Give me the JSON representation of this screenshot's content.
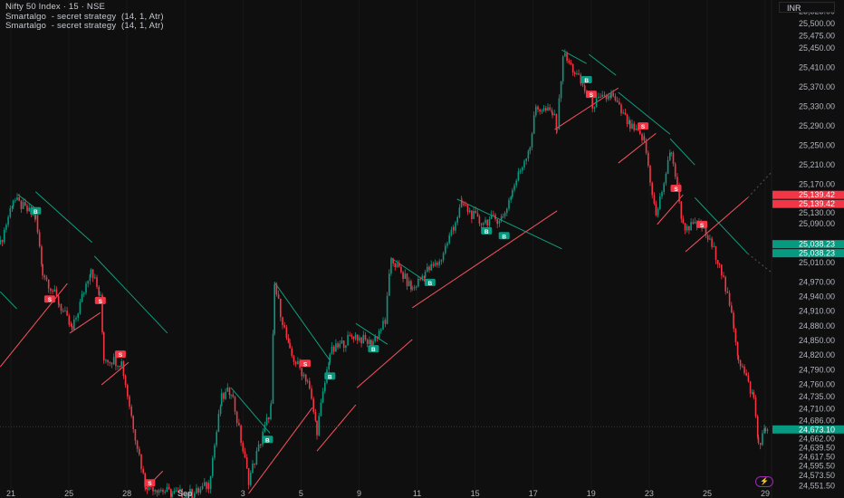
{
  "legend": {
    "symbol_line": "Nifty 50 Index · 15 · NSE",
    "indicator_lines": [
      "Smartalgo  - secret strategy  (14, 1, Atr)",
      "Smartalgo  - secret strategy  (14, 1, Atr)"
    ]
  },
  "currency_button": "INR",
  "icons": {
    "bottom_right": "lightning-icon"
  },
  "colors": {
    "background": "#0f0f0f",
    "up": "#089981",
    "down": "#f23645",
    "trend_down_line": "#0f9d7e",
    "trend_up_line": "#f7525f",
    "axis_text": "#b2b5be"
  },
  "chart_data": {
    "type": "candlestick",
    "symbol": "Nifty 50 Index",
    "interval": "15",
    "exchange": "NSE",
    "trading_days": [
      "08-20",
      "08-21",
      "08-22",
      "08-25",
      "08-26",
      "08-28",
      "08-29",
      "09-01",
      "09-02",
      "09-03",
      "09-04",
      "09-05",
      "09-08",
      "09-09",
      "09-10",
      "09-11",
      "09-12",
      "09-15",
      "09-16",
      "09-17",
      "09-18",
      "09-19",
      "09-22",
      "09-23",
      "09-24",
      "09-25",
      "09-26",
      "09-29"
    ],
    "x_tick_labels": [
      {
        "day": "08-21",
        "label": "21"
      },
      {
        "day": "08-25",
        "label": "25"
      },
      {
        "day": "08-28",
        "label": "28"
      },
      {
        "day": "09-01",
        "label": "Sep"
      },
      {
        "day": "09-03",
        "label": "3"
      },
      {
        "day": "09-05",
        "label": "5"
      },
      {
        "day": "09-09",
        "label": "9"
      },
      {
        "day": "09-11",
        "label": "11"
      },
      {
        "day": "09-15",
        "label": "15"
      },
      {
        "day": "09-17",
        "label": "17"
      },
      {
        "day": "09-19",
        "label": "19"
      },
      {
        "day": "09-23",
        "label": "23"
      },
      {
        "day": "09-25",
        "label": "25"
      },
      {
        "day": "09-29",
        "label": "29"
      }
    ],
    "y_tick_labels": [
      "25,525.00",
      "25,500.00",
      "25,475.00",
      "25,450.00",
      "25,410.00",
      "25,370.00",
      "25,330.00",
      "25,290.00",
      "25,250.00",
      "25,210.00",
      "25,170.00",
      "25,130.00",
      "25,090.00",
      "25,010.00",
      "24,970.00",
      "24,940.00",
      "24,910.00",
      "24,880.00",
      "24,850.00",
      "24,820.00",
      "24,790.00",
      "24,760.00",
      "24,735.00",
      "24,710.00",
      "24,686.00",
      "24,662.00",
      "24,639.50",
      "24,617.50",
      "24,595.50",
      "24,573.50",
      "24,551.50"
    ],
    "price_close_path": [
      [
        "08-20 13:15",
        25047
      ],
      [
        "08-21 09:45",
        25140
      ],
      [
        "08-21 14:30",
        25102
      ],
      [
        "08-22 09:45",
        24991
      ],
      [
        "08-22 13:15",
        24926
      ],
      [
        "08-25 09:45",
        24870
      ],
      [
        "08-25 13:45",
        25000
      ],
      [
        "08-26 09:30",
        24935
      ],
      [
        "08-26 10:15",
        24815
      ],
      [
        "08-26 14:00",
        24805
      ],
      [
        "08-28 10:15",
        24675
      ],
      [
        "08-28 12:45",
        24555
      ],
      [
        "08-29 12:15",
        24536
      ],
      [
        "09-01 10:45",
        24536
      ],
      [
        "09-01 13:45",
        24555
      ],
      [
        "09-02 10:15",
        24731
      ],
      [
        "09-02 12:15",
        24750
      ],
      [
        "09-03 09:45",
        24564
      ],
      [
        "09-03 12:45",
        24657
      ],
      [
        "09-03 14:30",
        24713
      ],
      [
        "09-03 15:15",
        24963
      ],
      [
        "09-04 12:15",
        24824
      ],
      [
        "09-05 09:45",
        24768
      ],
      [
        "09-05 11:45",
        24666
      ],
      [
        "09-05 14:30",
        24824
      ],
      [
        "09-08 13:15",
        24861
      ],
      [
        "09-09 10:45",
        24843
      ],
      [
        "09-09 13:45",
        24889
      ],
      [
        "09-09 15:00",
        25019
      ],
      [
        "09-10 13:15",
        24954
      ],
      [
        "09-11 09:45",
        24991
      ],
      [
        "09-11 12:45",
        25010
      ],
      [
        "09-12 09:30",
        25084
      ],
      [
        "09-12 11:15",
        25130
      ],
      [
        "09-12 15:00",
        25093
      ],
      [
        "09-15 13:45",
        25102
      ],
      [
        "09-16 09:30",
        25158
      ],
      [
        "09-16 13:15",
        25251
      ],
      [
        "09-16 14:30",
        25329
      ],
      [
        "09-17 11:45",
        25316
      ],
      [
        "09-17 12:45",
        25288
      ],
      [
        "09-17 14:00",
        25437
      ],
      [
        "09-18 10:15",
        25400
      ],
      [
        "09-18 14:00",
        25335
      ],
      [
        "09-19 11:45",
        25353
      ],
      [
        "09-22 09:30",
        25288
      ],
      [
        "09-22 12:30",
        25261
      ],
      [
        "09-22 15:00",
        25103
      ],
      [
        "09-23 12:00",
        25242
      ],
      [
        "09-23 14:30",
        25084
      ],
      [
        "09-24 12:15",
        25084
      ],
      [
        "09-25 09:45",
        25010
      ],
      [
        "09-25 12:45",
        24880
      ],
      [
        "09-25 13:45",
        24815
      ],
      [
        "09-26 10:45",
        24731
      ],
      [
        "09-26 11:45",
        24638
      ],
      [
        "09-26 13:15",
        24666
      ],
      [
        "09-26 14:00",
        24673.1
      ]
    ],
    "trend_lines_down": [
      [
        [
          "08-20 13:15",
          24950
        ],
        [
          "08-21 10:30",
          24915
        ]
      ],
      [
        [
          "08-21 10:45",
          25149
        ],
        [
          "08-21 14:30",
          25121
        ]
      ],
      [
        [
          "08-21 14:30",
          25155
        ],
        [
          "08-25 14:00",
          25051
        ]
      ],
      [
        [
          "08-25 14:30",
          25023
        ],
        [
          "08-29 11:15",
          24865
        ]
      ],
      [
        [
          "09-02 12:15",
          24753
        ],
        [
          "09-03 14:15",
          24660
        ]
      ],
      [
        [
          "09-03 15:15",
          24969
        ],
        [
          "09-05 14:30",
          24809
        ]
      ],
      [
        [
          "09-08 13:45",
          24885
        ],
        [
          "09-09 14:15",
          24842
        ]
      ],
      [
        [
          "09-09 15:00",
          25019
        ],
        [
          "09-11 09:45",
          24972
        ]
      ],
      [
        [
          "09-12 10:15",
          25140
        ],
        [
          "09-17 13:45",
          25038
        ]
      ],
      [
        [
          "09-17 13:45",
          25446
        ],
        [
          "09-18 12:45",
          25418
        ]
      ],
      [
        [
          "09-18 13:15",
          25437
        ],
        [
          "09-19 12:45",
          25394
        ]
      ],
      [
        [
          "09-19 13:15",
          25359
        ],
        [
          "09-23 11:45",
          25273
        ]
      ],
      [
        [
          "09-23 11:45",
          25264
        ],
        [
          "09-24 10:45",
          25210
        ]
      ],
      [
        [
          "09-24 10:45",
          25143
        ],
        [
          "09-26 09:30",
          25028
        ]
      ]
    ],
    "trend_lines_down_projection": [
      [
        "09-26 09:30",
        25028
      ],
      [
        "09-26 15:00",
        24986
      ]
    ],
    "trend_lines_up": [
      [
        [
          "08-20 13:15",
          24796
        ],
        [
          "08-22 15:00",
          24967
        ]
      ],
      [
        [
          "08-25 09:15",
          24865
        ],
        [
          "08-26 09:30",
          24907
        ]
      ],
      [
        [
          "08-26 09:45",
          24759
        ],
        [
          "08-28 09:15",
          24805
        ]
      ],
      [
        [
          "08-28 12:45",
          24545
        ],
        [
          "08-29 10:15",
          24582
        ]
      ],
      [
        [
          "09-03 09:45",
          24536
        ],
        [
          "09-05 10:45",
          24712
        ]
      ],
      [
        [
          "09-05 11:45",
          24623
        ],
        [
          "09-08 13:45",
          24718
        ]
      ],
      [
        [
          "09-08 14:00",
          24753
        ],
        [
          "09-10 13:15",
          24852
        ]
      ],
      [
        [
          "09-10 13:15",
          24917
        ],
        [
          "09-17 12:45",
          25116
        ]
      ],
      [
        [
          "09-17 12:15",
          25283
        ],
        [
          "09-19 13:15",
          25368
        ]
      ],
      [
        [
          "09-19 13:15",
          25214
        ],
        [
          "09-22 15:00",
          25275
        ]
      ],
      [
        [
          "09-22 15:15",
          25088
        ],
        [
          "09-23 14:30",
          25149
        ]
      ],
      [
        [
          "09-23 15:00",
          25032
        ],
        [
          "09-26 09:30",
          25143
        ]
      ]
    ],
    "trend_lines_up_projection": [
      [
        "09-26 09:30",
        25143
      ],
      [
        "09-26 14:30",
        25195
      ]
    ],
    "signals": [
      {
        "t": "08-21 14:30",
        "p": 25116,
        "type": "buy",
        "label": "B"
      },
      {
        "t": "08-22 11:15",
        "p": 24935,
        "type": "sell",
        "label": "S"
      },
      {
        "t": "08-26 09:30",
        "p": 24932,
        "type": "sell",
        "label": "S"
      },
      {
        "t": "08-26 13:45",
        "p": 24822,
        "type": "sell",
        "label": "S"
      },
      {
        "t": "08-28 13:45",
        "p": 24558,
        "type": "sell",
        "label": "S"
      },
      {
        "t": "09-03 13:45",
        "p": 24647,
        "type": "buy",
        "label": "B"
      },
      {
        "t": "09-05 09:15",
        "p": 24803,
        "type": "sell",
        "label": "S"
      },
      {
        "t": "09-05 14:30",
        "p": 24777,
        "type": "buy",
        "label": "B"
      },
      {
        "t": "09-09 11:15",
        "p": 24833,
        "type": "buy",
        "label": "B"
      },
      {
        "t": "09-11 10:45",
        "p": 24969,
        "type": "buy",
        "label": "B"
      },
      {
        "t": "09-15 10:15",
        "p": 25075,
        "type": "buy",
        "label": "B"
      },
      {
        "t": "09-15 14:00",
        "p": 25065,
        "type": "buy",
        "label": "B"
      },
      {
        "t": "09-18 12:45",
        "p": 25385,
        "type": "buy",
        "label": "B"
      },
      {
        "t": "09-18 13:45",
        "p": 25355,
        "type": "sell",
        "label": "S"
      },
      {
        "t": "09-22 12:15",
        "p": 25290,
        "type": "sell",
        "label": "S"
      },
      {
        "t": "09-23 13:00",
        "p": 25162,
        "type": "sell",
        "label": "S"
      },
      {
        "t": "09-24 12:15",
        "p": 25088,
        "type": "sell",
        "label": "S"
      }
    ],
    "price_labels": [
      {
        "value": "25,139.42",
        "color": "down",
        "offset": -3
      },
      {
        "value": "25,139.42",
        "color": "down",
        "offset": 3
      },
      {
        "value": "25,038.23",
        "color": "up",
        "offset": -3
      },
      {
        "value": "25,038.23",
        "color": "up",
        "offset": 3
      },
      {
        "value": "24,673.10",
        "color": "up",
        "offset": 0
      }
    ],
    "last_price": 24673.1,
    "grid": true
  }
}
